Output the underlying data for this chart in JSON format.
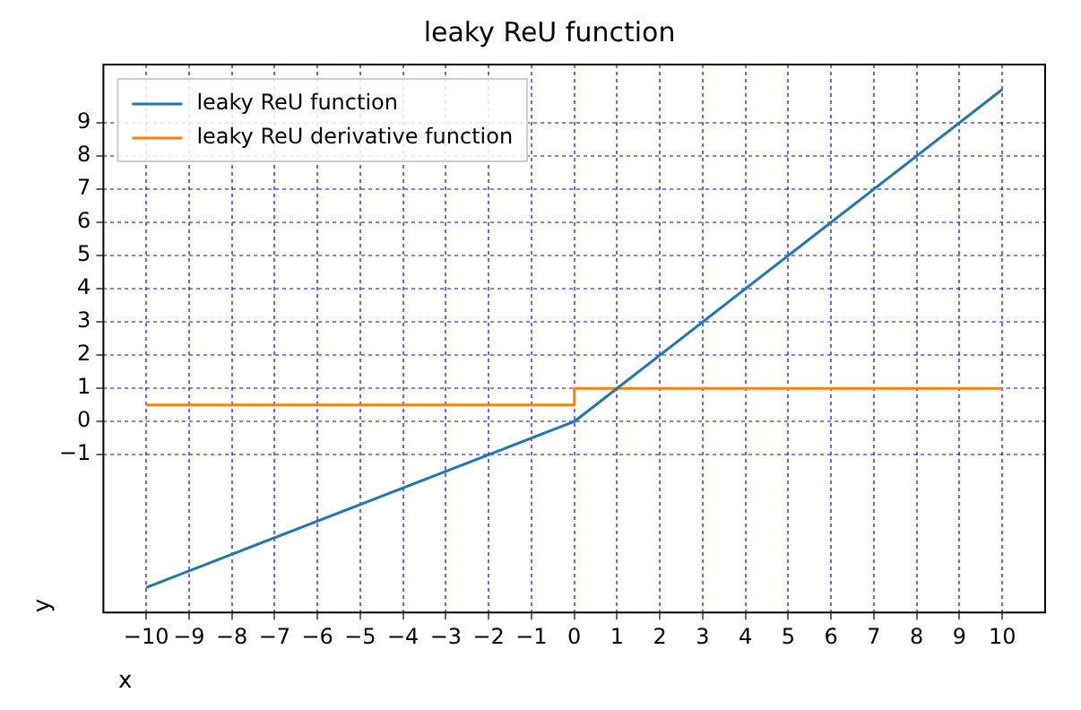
{
  "chart_data": {
    "type": "line",
    "title": "leaky ReU function",
    "xlabel": "x",
    "ylabel": "y",
    "series": [
      {
        "name": "leaky ReU function",
        "color": "#1f77b4",
        "x": [
          -10,
          0,
          10
        ],
        "values": [
          -5,
          0,
          10
        ]
      },
      {
        "name": "leaky ReU derivative function",
        "color": "#ff7f0e",
        "x": [
          -10,
          0,
          0,
          10
        ],
        "values": [
          0.5,
          0.5,
          1,
          1
        ]
      }
    ],
    "xlim": [
      -11,
      11
    ],
    "xticks": [
      -10,
      -9,
      -8,
      -7,
      -6,
      -5,
      -4,
      -3,
      -2,
      -1,
      0,
      1,
      2,
      3,
      4,
      5,
      6,
      7,
      8,
      9,
      10
    ],
    "ylim": [
      -5.75,
      10.75
    ],
    "yticks": [
      -1,
      0,
      1,
      2,
      3,
      4,
      5,
      6,
      7,
      8,
      9
    ],
    "grid": true,
    "legend": "top left",
    "marker": "none",
    "line_style": "solid"
  }
}
